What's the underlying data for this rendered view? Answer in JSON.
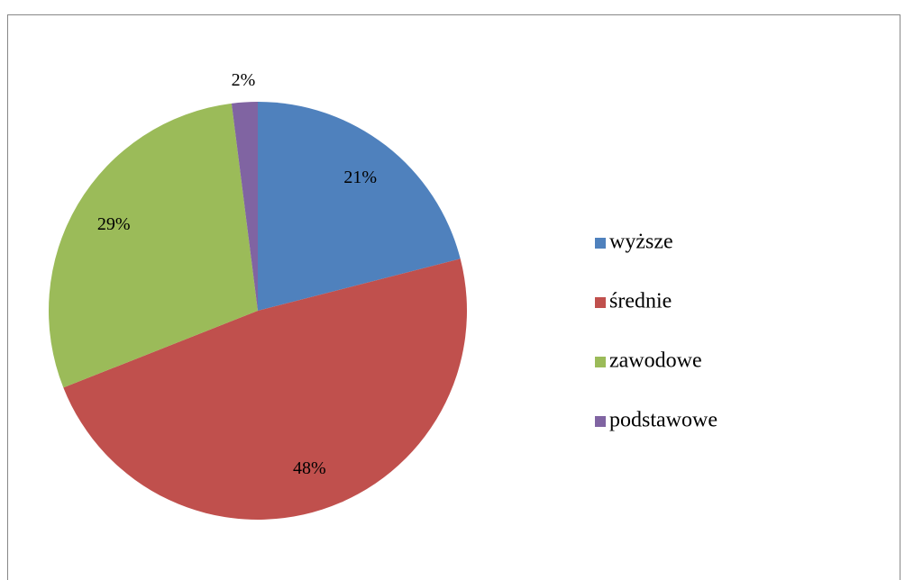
{
  "chart_data": {
    "type": "pie",
    "categories": [
      "wyższe",
      "średnie",
      "zawodowe",
      "podstawowe"
    ],
    "values": [
      21,
      48,
      29,
      2
    ],
    "value_labels": [
      "21%",
      "48%",
      "29%",
      "2%"
    ],
    "colors": [
      "#4f81bd",
      "#c0504d",
      "#9bbb59",
      "#8064a2"
    ],
    "legend": "right"
  }
}
